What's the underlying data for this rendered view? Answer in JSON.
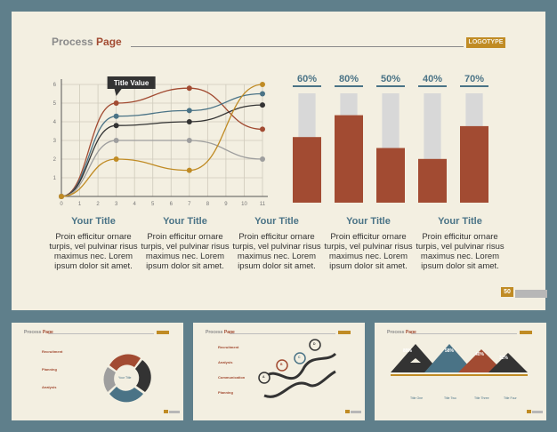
{
  "main": {
    "title_a": "Process ",
    "title_b": "Page",
    "logo": "LOGOTYPE",
    "page_number": "50",
    "colors": {
      "rust": "#a24b32",
      "teal": "#4a7386",
      "gold": "#c08b24",
      "grey": "#bdbdbd"
    },
    "line_chart": {
      "type": "line",
      "x_ticks": [
        "0",
        "1",
        "2",
        "3",
        "4",
        "5",
        "6",
        "7",
        "8",
        "9",
        "10",
        "11"
      ],
      "y_ticks": [
        "1",
        "2",
        "3",
        "4",
        "5",
        "6"
      ],
      "callout": "Title Value",
      "series": [
        {
          "color": "#a24b32",
          "points": [
            [
              0,
              0
            ],
            [
              3,
              5
            ],
            [
              7,
              5.8
            ],
            [
              11,
              3.6
            ]
          ]
        },
        {
          "color": "#4a7386",
          "points": [
            [
              0,
              0
            ],
            [
              3,
              4.3
            ],
            [
              7,
              4.6
            ],
            [
              11,
              5.5
            ]
          ]
        },
        {
          "color": "#333333",
          "points": [
            [
              0,
              0
            ],
            [
              3,
              3.8
            ],
            [
              7,
              4
            ],
            [
              11,
              4.9
            ]
          ]
        },
        {
          "color": "#9e9e9e",
          "points": [
            [
              0,
              0
            ],
            [
              3,
              3
            ],
            [
              7,
              3
            ],
            [
              11,
              2
            ]
          ]
        },
        {
          "color": "#c08b24",
          "points": [
            [
              0,
              0
            ],
            [
              3,
              2
            ],
            [
              7,
              1.4
            ],
            [
              11,
              6
            ]
          ]
        }
      ]
    },
    "bar_chart": {
      "type": "bar",
      "labels": [
        "60%",
        "80%",
        "50%",
        "40%",
        "70%"
      ],
      "values": [
        60,
        80,
        50,
        40,
        70
      ]
    },
    "columns": [
      {
        "title": "Your Title",
        "text": "Proin efficitur ornare turpis, vel pulvinar risus maximus nec. Lorem ipsum dolor sit amet."
      },
      {
        "title": "Your Title",
        "text": "Proin efficitur ornare turpis, vel pulvinar risus maximus nec. Lorem ipsum dolor sit amet."
      },
      {
        "title": "Your Title",
        "text": "Proin efficitur ornare turpis, vel pulvinar risus maximus nec. Lorem ipsum dolor sit amet."
      },
      {
        "title": "Your Title",
        "text": "Proin efficitur ornare turpis, vel pulvinar risus maximus nec. Lorem ipsum dolor sit amet."
      },
      {
        "title": "Your Title",
        "text": "Proin efficitur ornare turpis, vel pulvinar risus maximus nec. Lorem ipsum dolor sit amet."
      }
    ]
  },
  "mini1": {
    "title_a": "Process ",
    "title_b": "Page",
    "items": [
      "Recruitment",
      "Planning",
      "Analysis"
    ],
    "center": "Your Title"
  },
  "mini2": {
    "title_a": "Process ",
    "title_b": "Page",
    "items": [
      "Recruitment",
      "Analysis",
      "Communication",
      "Planning"
    ],
    "letters": [
      "A",
      "B",
      "C",
      "D"
    ]
  },
  "mini3": {
    "title_a": "Process ",
    "title_b": "Page",
    "percents": [
      "89%",
      "58%",
      "40%",
      "32%"
    ],
    "titles": [
      "Title One",
      "Title Two",
      "Title Three",
      "Title Four"
    ]
  }
}
